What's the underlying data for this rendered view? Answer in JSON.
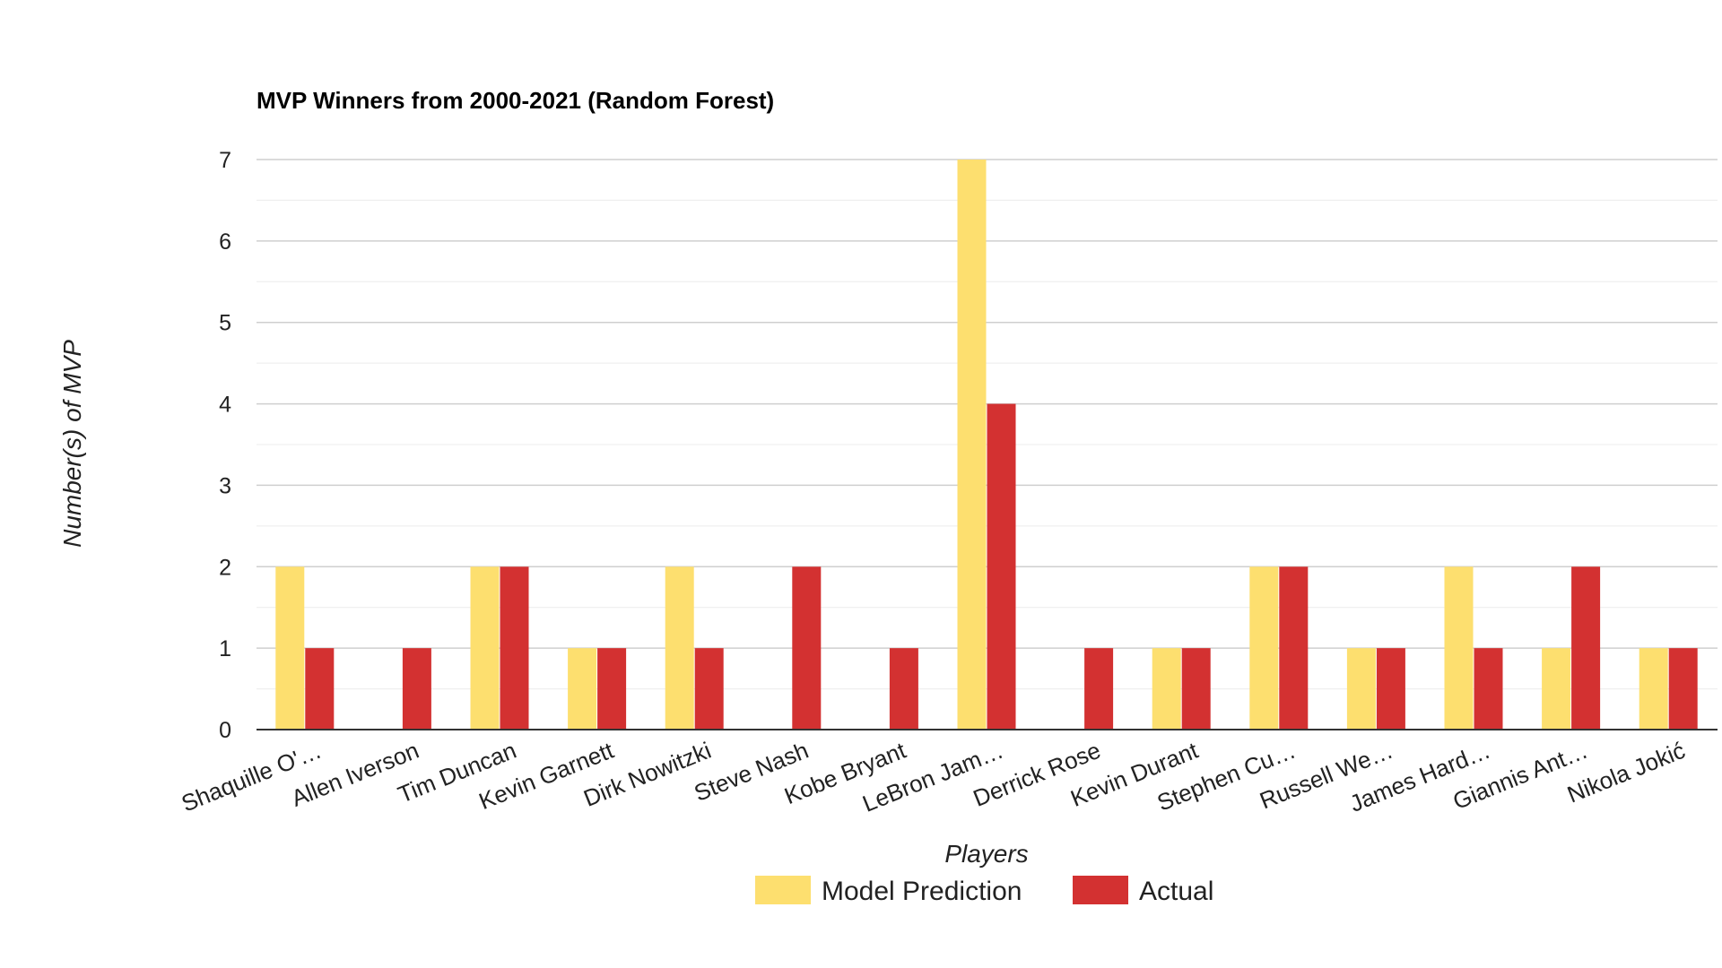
{
  "chart_data": {
    "type": "bar",
    "title": "MVP Winners from 2000-2021 (Random Forest)",
    "xlabel": "Players",
    "ylabel": "Number(s) of MVP",
    "ylim": [
      0,
      7
    ],
    "yticks": [
      0,
      1,
      2,
      3,
      4,
      5,
      6,
      7
    ],
    "grid": true,
    "legend_position": "bottom",
    "categories": [
      "Shaquille O'…",
      "Allen Iverson",
      "Tim Duncan",
      "Kevin Garnett",
      "Dirk Nowitzki",
      "Steve Nash",
      "Kobe Bryant",
      "LeBron Jam…",
      "Derrick Rose",
      "Kevin Durant",
      "Stephen Cu…",
      "Russell We…",
      "James Hard…",
      "Giannis Ant…",
      "Nikola Jokić"
    ],
    "series": [
      {
        "name": "Model Prediction",
        "color": "#FDDF6F",
        "values": [
          2,
          0,
          2,
          1,
          2,
          0,
          0,
          7,
          0,
          1,
          2,
          1,
          2,
          1,
          1
        ]
      },
      {
        "name": "Actual",
        "color": "#D33131",
        "values": [
          1,
          1,
          2,
          1,
          1,
          2,
          1,
          4,
          1,
          1,
          2,
          1,
          1,
          2,
          1
        ]
      }
    ]
  }
}
